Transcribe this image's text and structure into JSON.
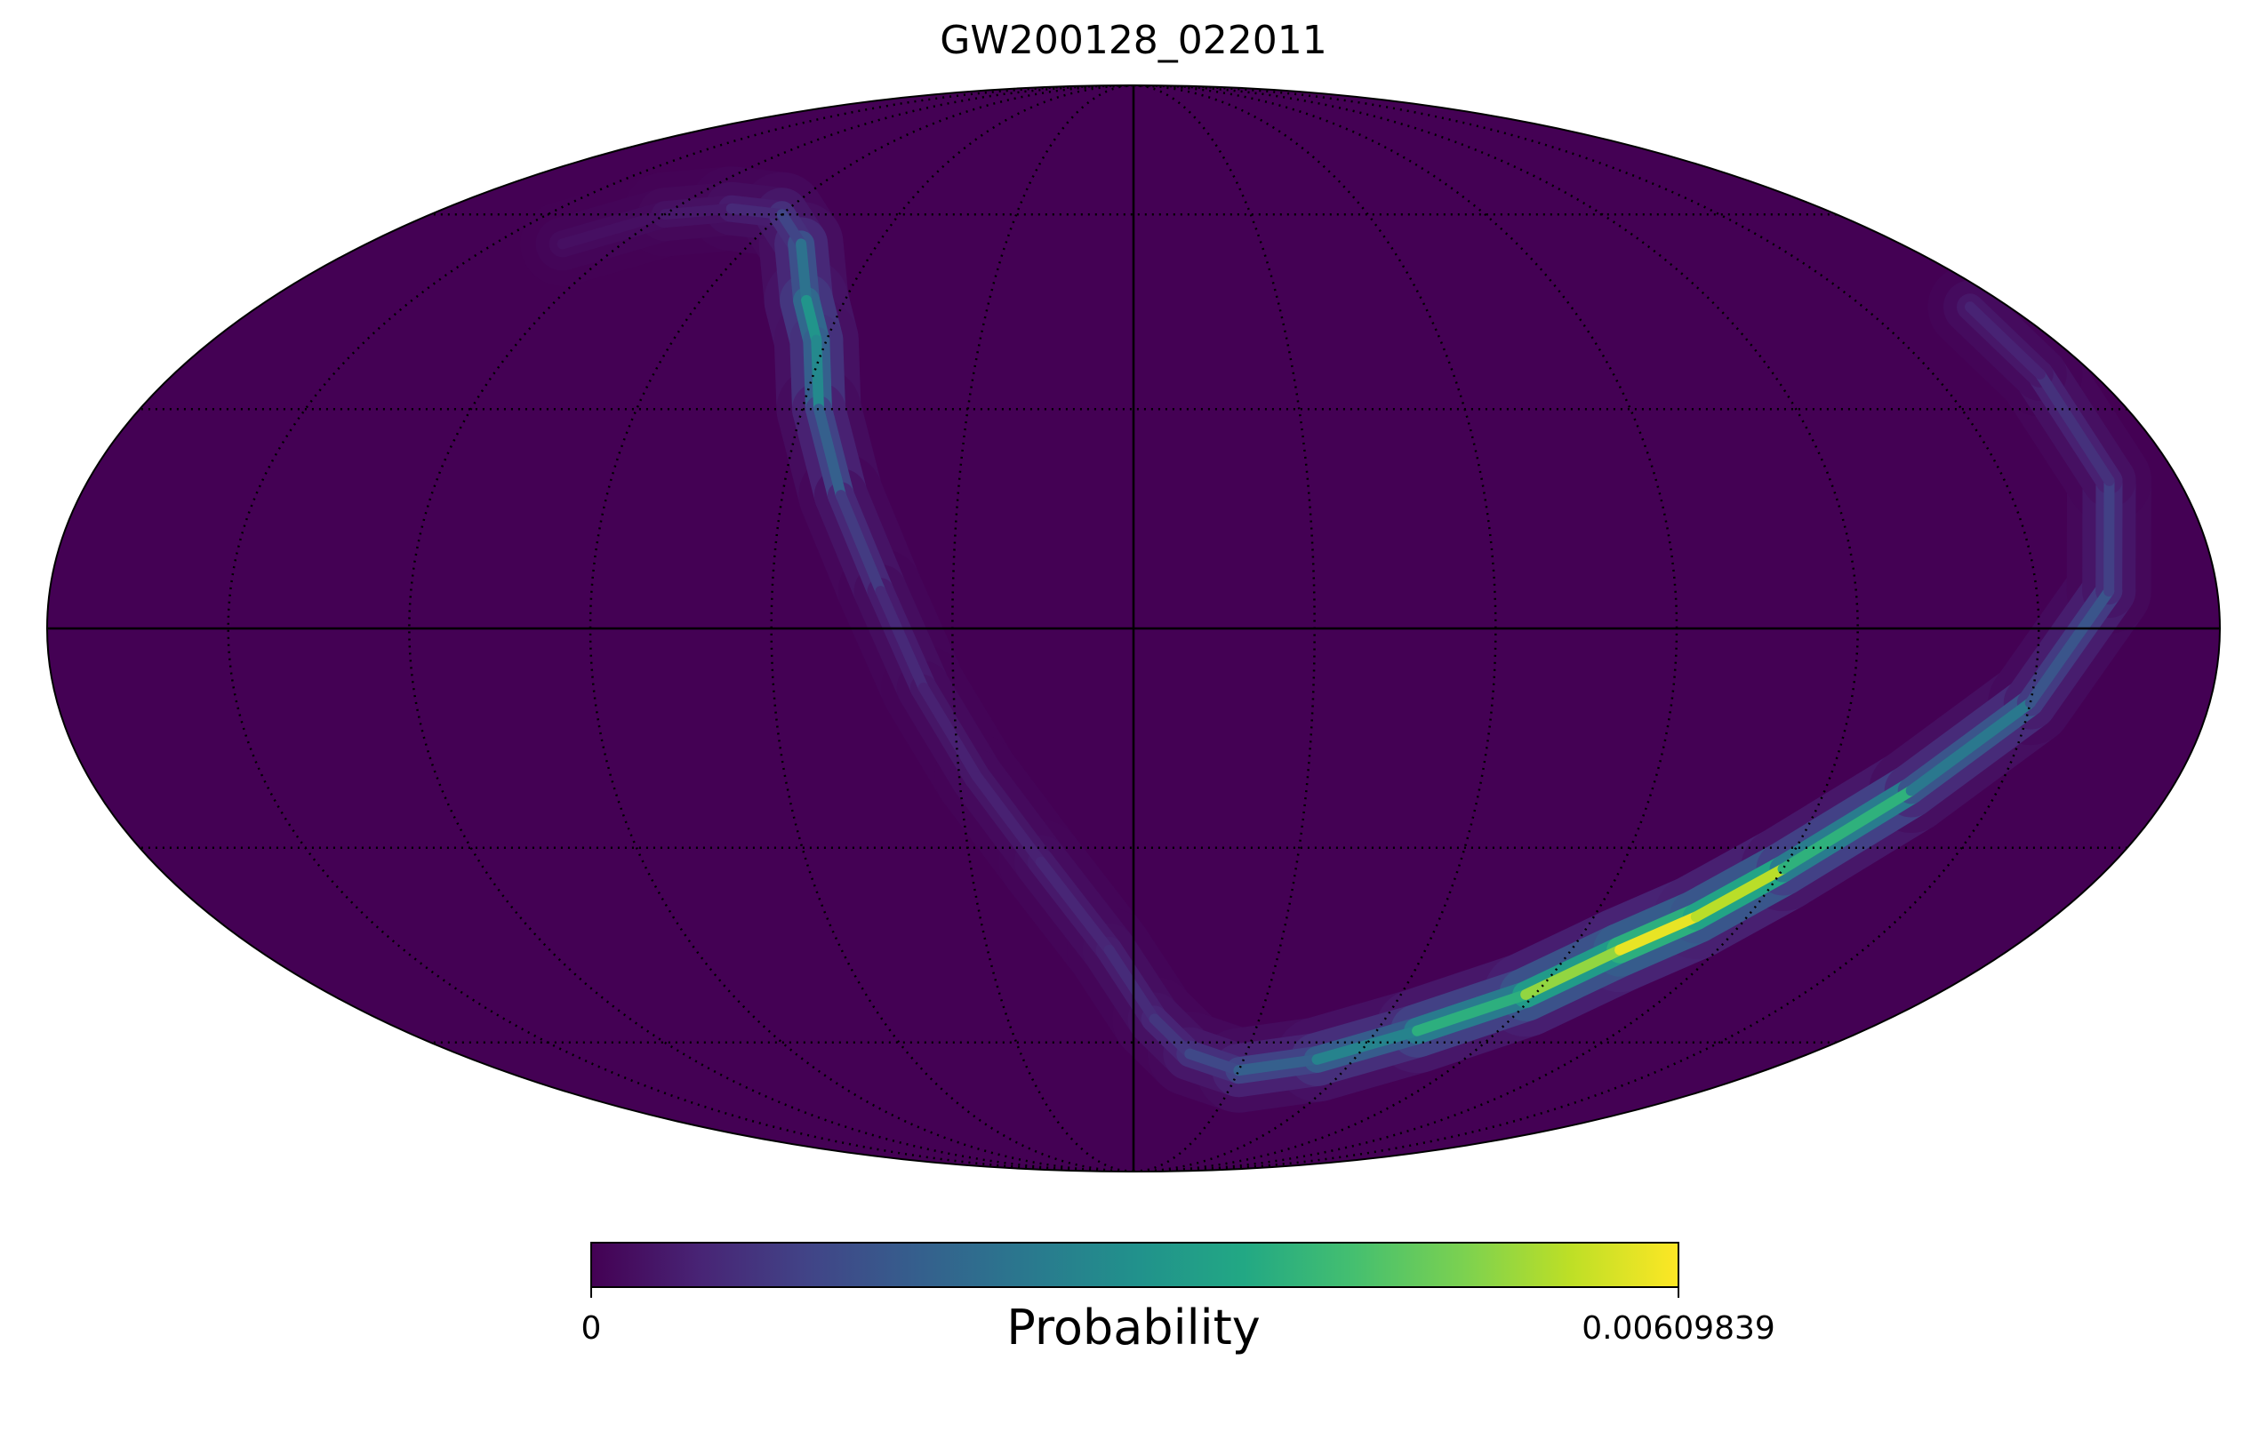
{
  "chart_data": {
    "type": "heatmap",
    "projection": "mollweide",
    "title": "GW200128_022011",
    "colorbar": {
      "label": "Probability",
      "min": 0,
      "max": 0.00609839,
      "min_label": "0",
      "max_label": "0.00609839",
      "colormap": "viridis",
      "orientation": "horizontal",
      "placement": "bottom"
    },
    "graticule": {
      "meridian_step_deg": 30,
      "parallel_step_deg": 30,
      "style": "dotted",
      "central_lines": "solid"
    },
    "background_value": 0,
    "probability_band": [
      {
        "lon": 134,
        "lat": 55,
        "value": 0.0002
      },
      {
        "lon": 120,
        "lat": 60,
        "value": 0.0003
      },
      {
        "lon": 105,
        "lat": 61,
        "value": 0.0005
      },
      {
        "lon": 90,
        "lat": 60,
        "value": 0.0009
      },
      {
        "lon": 78,
        "lat": 55,
        "value": 0.0016
      },
      {
        "lon": 68,
        "lat": 46,
        "value": 0.003
      },
      {
        "lon": 62,
        "lat": 40,
        "value": 0.0033
      },
      {
        "lon": 57,
        "lat": 30,
        "value": 0.0024
      },
      {
        "lon": 50,
        "lat": 18,
        "value": 0.0013
      },
      {
        "lon": 42,
        "lat": 5,
        "value": 0.0008
      },
      {
        "lon": 35,
        "lat": -8,
        "value": 0.0006
      },
      {
        "lon": 27,
        "lat": -20,
        "value": 0.0005
      },
      {
        "lon": 17,
        "lat": -32,
        "value": 0.0006
      },
      {
        "lon": 5,
        "lat": -45,
        "value": 0.0007
      },
      {
        "lon": -5,
        "lat": -56,
        "value": 0.0008
      },
      {
        "lon": -15,
        "lat": -62,
        "value": 0.0011
      },
      {
        "lon": -30,
        "lat": -65,
        "value": 0.0015
      },
      {
        "lon": -50,
        "lat": -63,
        "value": 0.0022
      },
      {
        "lon": -70,
        "lat": -58,
        "value": 0.0032
      },
      {
        "lon": -88,
        "lat": -52,
        "value": 0.0045
      },
      {
        "lon": -100,
        "lat": -45,
        "value": 0.0057
      },
      {
        "lon": -110,
        "lat": -40,
        "value": 0.0061
      },
      {
        "lon": -120,
        "lat": -33,
        "value": 0.0048
      },
      {
        "lon": -135,
        "lat": -22,
        "value": 0.003
      },
      {
        "lon": -150,
        "lat": -10,
        "value": 0.0019
      },
      {
        "lon": -162,
        "lat": 5,
        "value": 0.0013
      },
      {
        "lon": -168,
        "lat": 20,
        "value": 0.001
      },
      {
        "lon": -170,
        "lat": 35,
        "value": 0.0007
      },
      {
        "lon": -172,
        "lat": 45,
        "value": 0.0005
      }
    ]
  }
}
